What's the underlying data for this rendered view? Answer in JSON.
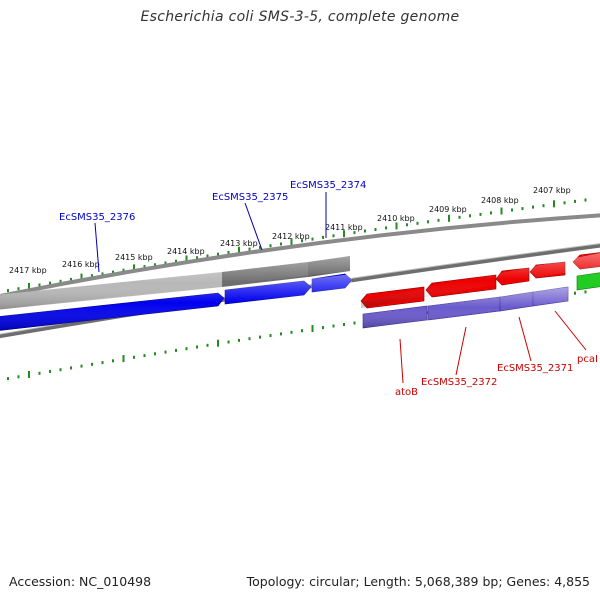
{
  "title": "Escherichia coli SMS-3-5, complete genome",
  "footer": {
    "accession": "Accession: NC_010498",
    "summary": "Topology: circular; Length: 5,068,389 bp; Genes: 4,855"
  },
  "ruler": {
    "major_labels": [
      "2417 kbp",
      "2416 kbp",
      "2415 kbp",
      "2414 kbp",
      "2413 kbp",
      "2412 kbp",
      "2411 kbp",
      "2410 kbp",
      "2409 kbp",
      "2408 kbp",
      "2407 kbp"
    ]
  },
  "genes_top": [
    {
      "label": "EcSMS35_2376",
      "color": "#0000cc"
    },
    {
      "label": "EcSMS35_2375",
      "color": "#0000cc"
    },
    {
      "label": "EcSMS35_2374",
      "color": "#0000cc"
    }
  ],
  "genes_bottom": [
    {
      "label": "atoB",
      "color": "#cc0000"
    },
    {
      "label": "EcSMS35_2372",
      "color": "#cc0000"
    },
    {
      "label": "EcSMS35_2371",
      "color": "#cc0000"
    },
    {
      "label": "pcaI",
      "color": "#cc0000"
    }
  ],
  "colors": {
    "forward_gene": "#0000ee",
    "reverse_gene": "#ee0000",
    "reverse_lower_track": "#6a5acd",
    "green_gene": "#22cc22",
    "ruler_tick": "#228b22",
    "backbone": "#777777"
  }
}
